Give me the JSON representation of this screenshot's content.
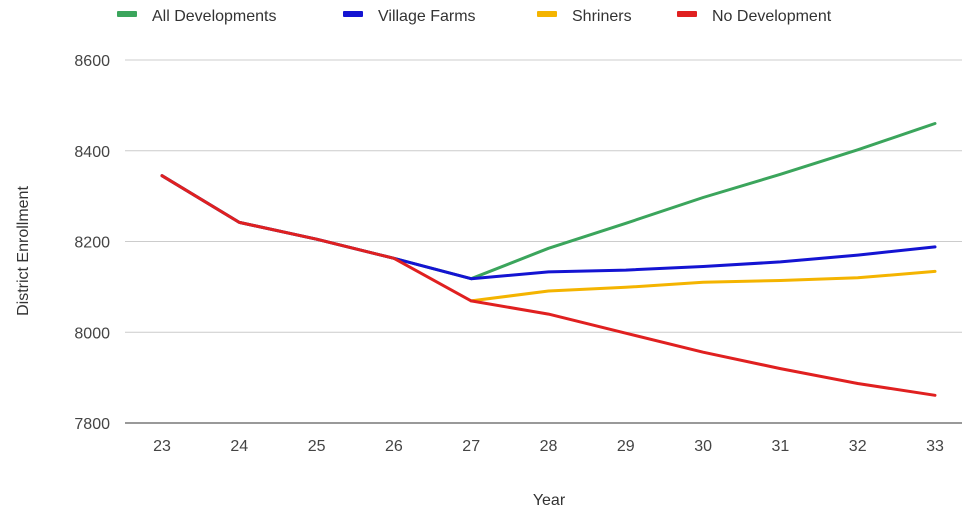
{
  "chart_data": {
    "type": "line",
    "title": "",
    "xlabel": "Year",
    "ylabel": "District Enrollment",
    "x": [
      "23",
      "24",
      "25",
      "26",
      "27",
      "28",
      "29",
      "30",
      "31",
      "32",
      "33"
    ],
    "ylim": [
      7800,
      8600
    ],
    "yticks": [
      7800,
      8000,
      8200,
      8400,
      8600
    ],
    "grid": true,
    "legend_position": "top",
    "series": [
      {
        "name": "All Developments",
        "color": "#3ba55c",
        "x": [
          "23",
          "24",
          "25",
          "26",
          "27",
          "28",
          "29",
          "30",
          "31",
          "32",
          "33"
        ],
        "values": [
          8345,
          8242,
          8205,
          8163,
          8118,
          8185,
          8240,
          8297,
          8348,
          8402,
          8460
        ]
      },
      {
        "name": "Village Farms",
        "color": "#1414d2",
        "x": [
          "23",
          "24",
          "25",
          "26",
          "27",
          "28",
          "29",
          "30",
          "31",
          "32",
          "33"
        ],
        "values": [
          8345,
          8242,
          8205,
          8163,
          8118,
          8133,
          8137,
          8145,
          8155,
          8170,
          8188
        ]
      },
      {
        "name": "Shriners",
        "color": "#f4b400",
        "x": [
          "27",
          "28",
          "29",
          "30",
          "31",
          "32",
          "33"
        ],
        "values": [
          8069,
          8091,
          8099,
          8110,
          8114,
          8120,
          8134
        ]
      },
      {
        "name": "No Development",
        "color": "#e02020",
        "x": [
          "23",
          "24",
          "25",
          "26",
          "27",
          "28",
          "29",
          "30",
          "31",
          "32",
          "33"
        ],
        "values": [
          8345,
          8242,
          8205,
          8163,
          8069,
          8040,
          7998,
          7956,
          7920,
          7887,
          7861
        ]
      }
    ]
  }
}
